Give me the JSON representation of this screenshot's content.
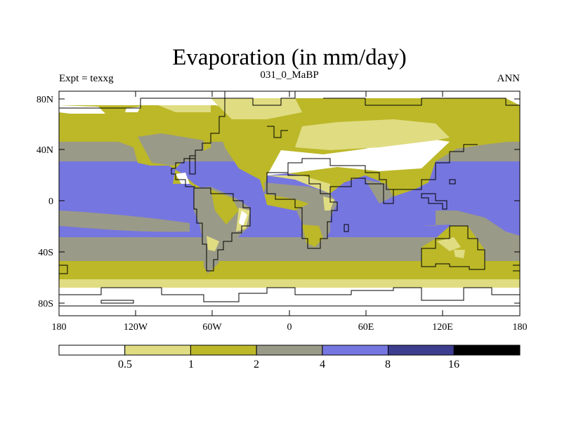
{
  "title": "Evaporation (in mm/day)",
  "left_label": "Expt = texxg",
  "center_label": "031_0_MaBP",
  "right_label": "ANN",
  "lat_ticks": [
    "80N",
    "40N",
    "0",
    "40S",
    "80S"
  ],
  "lon_ticks": [
    "180",
    "120W",
    "60W",
    "0",
    "60E",
    "120E",
    "180"
  ],
  "colorbar": {
    "colors": [
      "#ffffff",
      "#e0dc82",
      "#bcb828",
      "#9a9a88",
      "#7676e0",
      "#3d3d8f",
      "#000000"
    ],
    "labels": [
      "0.5",
      "1",
      "2",
      "4",
      "8",
      "16"
    ]
  }
}
